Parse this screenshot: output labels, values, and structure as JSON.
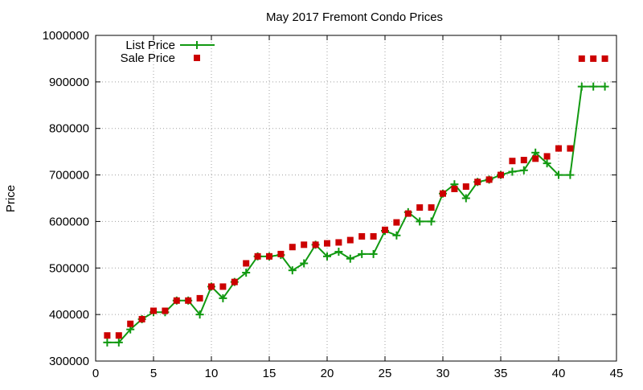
{
  "chart_data": {
    "type": "line",
    "title": "May 2017 Fremont Condo Prices",
    "xlabel": "",
    "ylabel": "Price",
    "xlim": [
      0,
      45
    ],
    "ylim": [
      300000,
      1000000
    ],
    "x_ticks": [
      0,
      5,
      10,
      15,
      20,
      25,
      30,
      35,
      40,
      45
    ],
    "y_ticks": [
      300000,
      400000,
      500000,
      600000,
      700000,
      800000,
      900000,
      1000000
    ],
    "grid": true,
    "legend_position": "top-left",
    "series": [
      {
        "name": "List Price",
        "style": "line-with-plus-markers",
        "color": "#119911",
        "x": [
          1,
          2,
          3,
          4,
          5,
          6,
          7,
          8,
          9,
          10,
          11,
          12,
          13,
          14,
          15,
          16,
          17,
          18,
          19,
          20,
          21,
          22,
          23,
          24,
          25,
          26,
          27,
          28,
          29,
          30,
          31,
          32,
          33,
          34,
          35,
          36,
          37,
          38,
          39,
          40,
          41,
          42,
          43,
          44
        ],
        "values": [
          340000,
          340000,
          368000,
          390000,
          405000,
          405000,
          430000,
          430000,
          400000,
          460000,
          435000,
          470000,
          490000,
          525000,
          525000,
          528000,
          495000,
          510000,
          550000,
          525000,
          535000,
          520000,
          530000,
          530000,
          580000,
          570000,
          620000,
          600000,
          600000,
          660000,
          680000,
          650000,
          685000,
          690000,
          700000,
          707000,
          710000,
          748000,
          725000,
          700000,
          700000,
          890000,
          890000,
          890000
        ]
      },
      {
        "name": "Sale Price",
        "style": "square-markers",
        "color": "#cc0000",
        "x": [
          1,
          2,
          3,
          4,
          5,
          6,
          7,
          8,
          9,
          10,
          11,
          12,
          13,
          14,
          15,
          16,
          17,
          18,
          19,
          20,
          21,
          22,
          23,
          24,
          25,
          26,
          27,
          28,
          29,
          30,
          31,
          32,
          33,
          34,
          35,
          36,
          37,
          38,
          39,
          40,
          41,
          42,
          43,
          44
        ],
        "values": [
          355000,
          355000,
          380000,
          390000,
          408000,
          408000,
          430000,
          430000,
          435000,
          460000,
          460000,
          470000,
          510000,
          525000,
          525000,
          530000,
          545000,
          550000,
          550000,
          553000,
          555000,
          560000,
          568000,
          568000,
          582000,
          598000,
          617000,
          630000,
          630000,
          660000,
          670000,
          675000,
          685000,
          690000,
          700000,
          730000,
          732000,
          735000,
          740000,
          757000,
          757000,
          950000,
          950000,
          950000
        ]
      }
    ]
  }
}
